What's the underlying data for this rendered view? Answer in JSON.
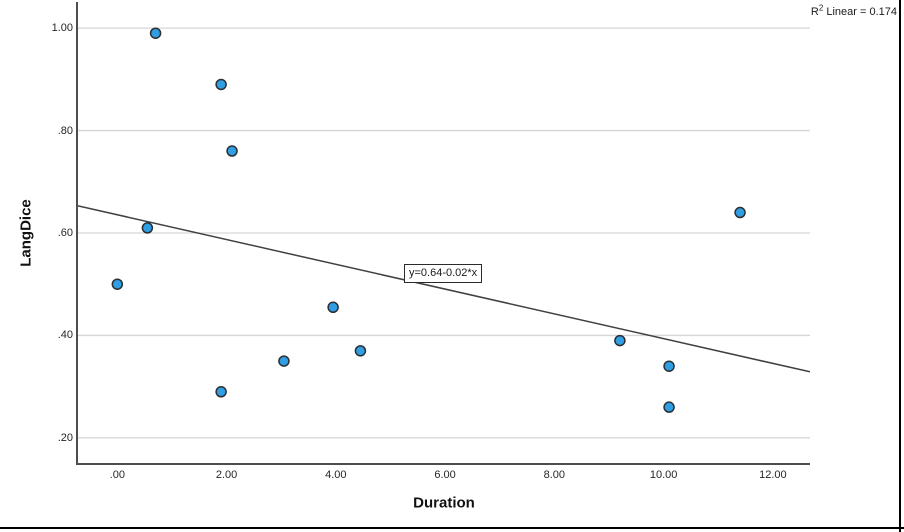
{
  "figure": {
    "r2": {
      "base": "R",
      "sup": "2",
      "rest": " Linear = 0.174"
    }
  },
  "chart_data": {
    "type": "scatter",
    "title": "",
    "xlabel": "Duration",
    "ylabel": "LangDice",
    "xlim": [
      -0.72,
      12.68
    ],
    "ylim": [
      0.151,
      1.051
    ],
    "grid": "horizontal-only",
    "legend": "none",
    "x_ticks": [
      {
        "value": 0,
        "label": ".00"
      },
      {
        "value": 2,
        "label": "2.00"
      },
      {
        "value": 4,
        "label": "4.00"
      },
      {
        "value": 6,
        "label": "6.00"
      },
      {
        "value": 8,
        "label": "8.00"
      },
      {
        "value": 10,
        "label": "10.00"
      },
      {
        "value": 12,
        "label": "12.00"
      }
    ],
    "y_ticks": [
      {
        "value": 1.0,
        "label": "1.00"
      },
      {
        "value": 0.8,
        "label": ".80"
      },
      {
        "value": 0.6,
        "label": ".60"
      },
      {
        "value": 0.4,
        "label": ".40"
      },
      {
        "value": 0.2,
        "label": ".20"
      }
    ],
    "points": [
      [
        0.0,
        0.5
      ],
      [
        0.55,
        0.61
      ],
      [
        0.7,
        0.99
      ],
      [
        1.9,
        0.89
      ],
      [
        1.9,
        0.29
      ],
      [
        2.1,
        0.76
      ],
      [
        3.05,
        0.35
      ],
      [
        3.95,
        0.455
      ],
      [
        4.45,
        0.37
      ],
      [
        9.2,
        0.39
      ],
      [
        10.1,
        0.34
      ],
      [
        10.1,
        0.26
      ],
      [
        11.4,
        0.64
      ]
    ],
    "regression_line": {
      "label": "y=0.64-0.02*x",
      "x1": -0.72,
      "y1": 0.653,
      "x2": 12.68,
      "y2": 0.329
    },
    "r2_text": "R2 Linear = 0.174",
    "colors": {
      "point_fill": "#2f9ee3",
      "point_edge": "#2b2f33",
      "line": "#404040",
      "gridline": "#d6d6d6",
      "axis": "#4d4d4d",
      "text": "#262626"
    }
  }
}
